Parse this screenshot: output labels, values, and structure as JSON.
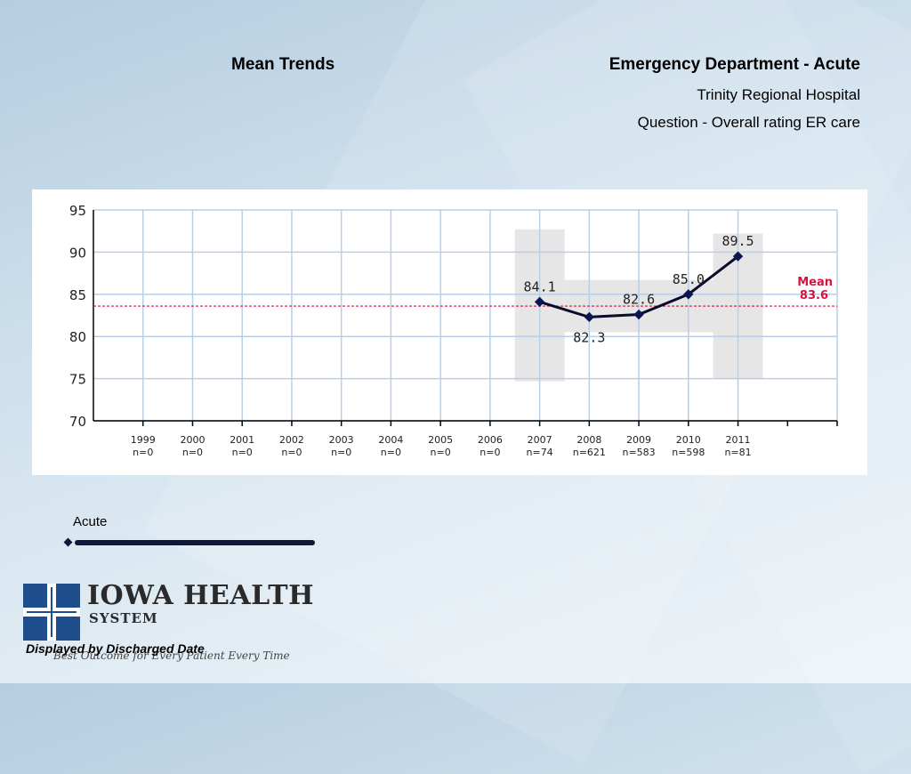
{
  "header": {
    "left_title": "Mean Trends",
    "right_title": "Emergency Department - Acute",
    "hospital": "Trinity Regional Hospital",
    "question": "Question - Overall rating ER care"
  },
  "legend": {
    "label": "Acute"
  },
  "logo": {
    "name": "Iowa Health",
    "system": "System",
    "tagline": "Best Outcome for Every Patient Every Time"
  },
  "footer": {
    "note": "Displayed by Discharged Date"
  },
  "colors": {
    "series": "#0a0a2a",
    "marker": "#0b1550",
    "mean": "#d9113f",
    "grid": "#b9cfe6",
    "logo_blue": "#1e4f8c"
  },
  "chart_data": {
    "type": "line",
    "categories": [
      "1999",
      "2000",
      "2001",
      "2002",
      "2003",
      "2004",
      "2005",
      "2006",
      "2007",
      "2008",
      "2009",
      "2010",
      "2011"
    ],
    "n_labels": [
      "n=0",
      "n=0",
      "n=0",
      "n=0",
      "n=0",
      "n=0",
      "n=0",
      "n=0",
      "n=74",
      "n=621",
      "n=583",
      "n=598",
      "n=81"
    ],
    "series": [
      {
        "values": [
          null,
          null,
          null,
          null,
          null,
          null,
          null,
          null,
          84.1,
          82.3,
          82.6,
          85.0,
          89.5
        ],
        "labels": [
          null,
          null,
          null,
          null,
          null,
          null,
          null,
          null,
          "84.1",
          "82.3",
          "82.6",
          "85.0",
          "89.5"
        ]
      }
    ],
    "mean": {
      "value": 83.6,
      "label": "Mean",
      "value_label": "83.6"
    },
    "ylim": [
      70,
      95
    ],
    "yticks": [
      "70",
      "75",
      "80",
      "85",
      "90",
      "95"
    ],
    "grid": true,
    "xlabel": "",
    "ylabel": ""
  }
}
